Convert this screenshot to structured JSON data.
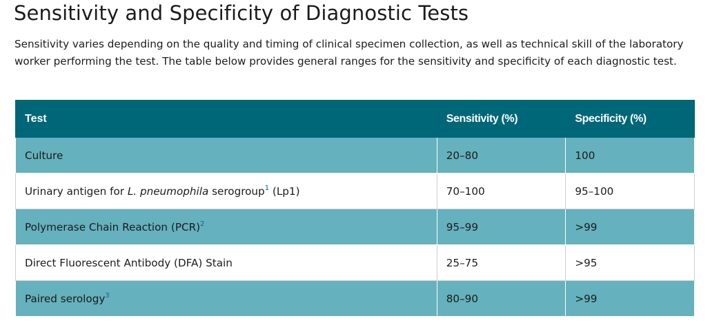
{
  "heading": "Sensitivity and Specificity of Diagnostic Tests",
  "intro": "Sensitivity varies depending on the quality and timing of clinical specimen collection, as well as technical skill of the laboratory worker performing the test. The table below provides general ranges for the sensitivity and specificity of each diagnostic test.",
  "table": {
    "headers": [
      "Test",
      "Sensitivity (%)",
      "Specificity (%)"
    ],
    "rows": [
      {
        "test": "Culture",
        "sensitivity": "20–80",
        "specificity": "100"
      },
      {
        "test_before": "Urinary antigen for ",
        "test_italic": "L. pneumophila",
        "test_mid": " serogroup",
        "test_ref": "1",
        "test_after": " (Lp1)",
        "sensitivity": "70–100",
        "specificity": "95–100"
      },
      {
        "test": "Polymerase Chain Reaction (PCR)",
        "test_ref": "2",
        "sensitivity": "95–99",
        "specificity": ">99"
      },
      {
        "test": "Direct Fluorescent Antibody (DFA) Stain",
        "sensitivity": "25–75",
        "specificity": ">95"
      },
      {
        "test": "Paired serology",
        "test_ref": "3",
        "sensitivity": "80–90",
        "specificity": ">99"
      }
    ]
  },
  "colors": {
    "header_bg": "#006778",
    "alt_row_bg": "#65b1bd",
    "text": "#1b1b1b",
    "footnote_link": "#1a5c9e"
  }
}
